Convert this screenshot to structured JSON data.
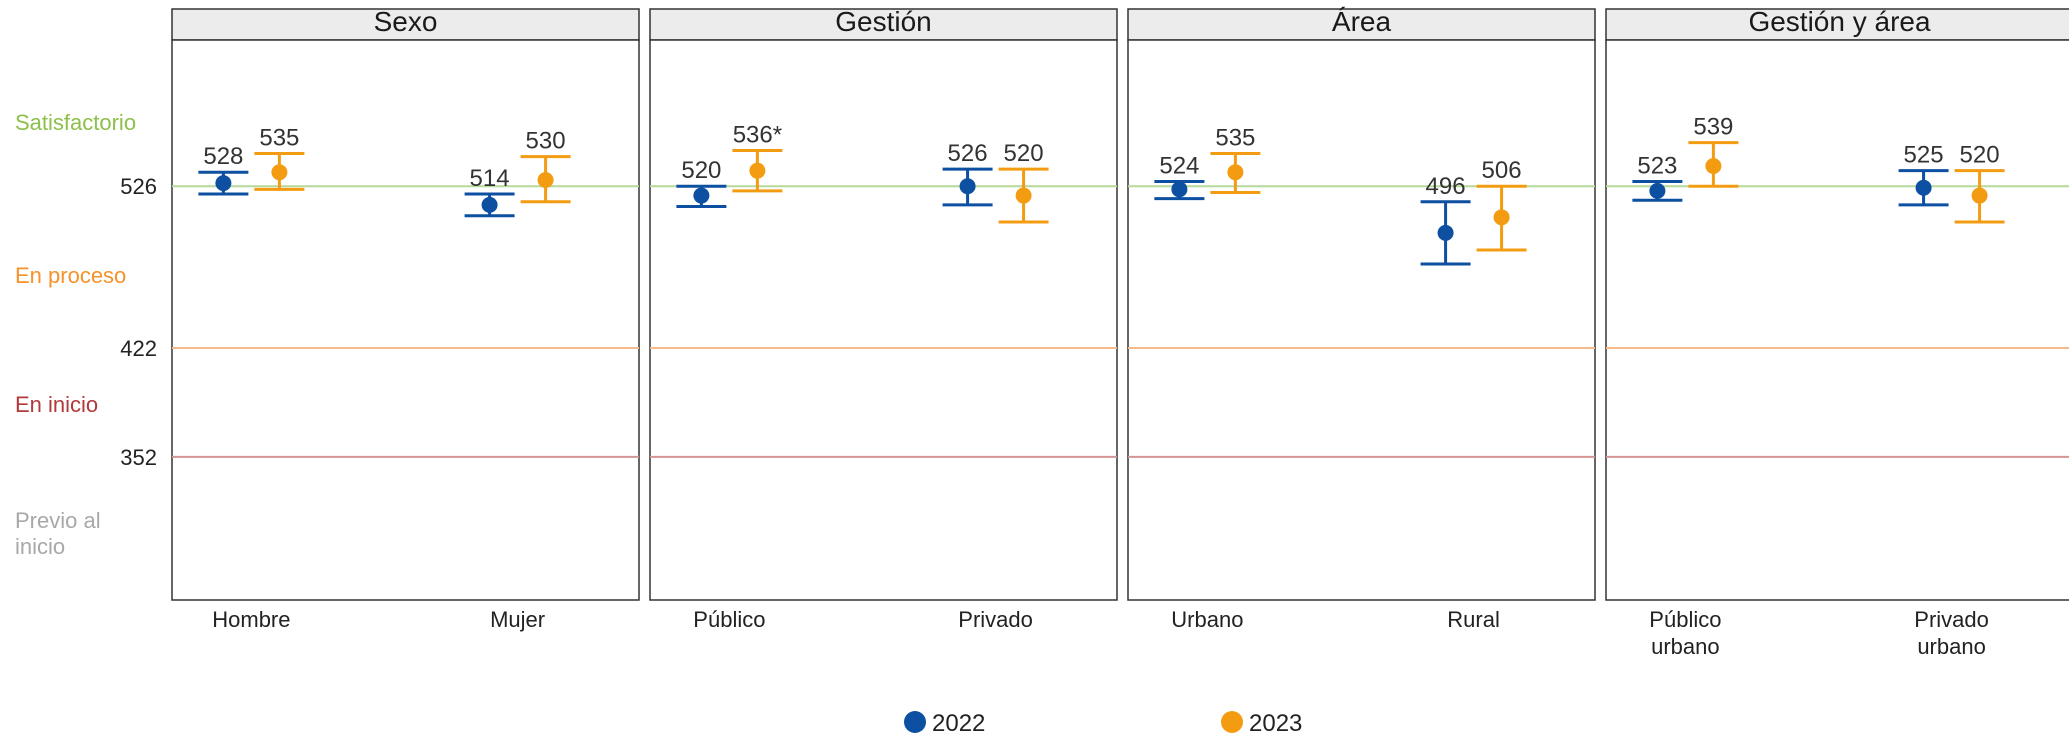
{
  "chart_data": {
    "type": "scatter",
    "subtype": "dot-with-error-bars, faceted",
    "legend": {
      "placement": "bottom",
      "entries": [
        {
          "label": "2022",
          "color": "#0d4fa0"
        },
        {
          "label": "2023",
          "color": "#f39c12"
        }
      ]
    },
    "y_scale": {
      "min": 260,
      "max": 620
    },
    "bands": [
      {
        "label": "Satisfactorio",
        "color": "#8dc04a"
      },
      {
        "label": "En proceso",
        "color": "#f5922c"
      },
      {
        "label": "En inicio",
        "color": "#b13b3b"
      },
      {
        "label": "Previo al inicio",
        "color": "#a8a8a8"
      }
    ],
    "thresholds": [
      {
        "value": 526,
        "label": "526",
        "color": "#b6d99a"
      },
      {
        "value": 422,
        "label": "422",
        "color": "#f6b98a"
      },
      {
        "value": 352,
        "label": "352",
        "color": "#d59494"
      }
    ],
    "panels": [
      {
        "title": "Sexo",
        "categories": [
          {
            "label": "Hombre",
            "points": [
              {
                "year": "2022",
                "value": 528,
                "low": 521,
                "high": 535,
                "label": "528"
              },
              {
                "year": "2023",
                "value": 535,
                "low": 524,
                "high": 547,
                "label": "535"
              }
            ]
          },
          {
            "label": "Mujer",
            "points": [
              {
                "year": "2022",
                "value": 514,
                "low": 507,
                "high": 521,
                "label": "514"
              },
              {
                "year": "2023",
                "value": 530,
                "low": 516,
                "high": 545,
                "label": "530"
              }
            ]
          }
        ]
      },
      {
        "title": "Gestión",
        "categories": [
          {
            "label": "Público",
            "points": [
              {
                "year": "2022",
                "value": 520,
                "low": 513,
                "high": 526,
                "label": "520"
              },
              {
                "year": "2023",
                "value": 536,
                "low": 523,
                "high": 549,
                "label": "536*"
              }
            ]
          },
          {
            "label": "Privado",
            "points": [
              {
                "year": "2022",
                "value": 526,
                "low": 514,
                "high": 537,
                "label": "526"
              },
              {
                "year": "2023",
                "value": 520,
                "low": 503,
                "high": 537,
                "label": "520"
              }
            ]
          }
        ]
      },
      {
        "title": "Área",
        "categories": [
          {
            "label": "Urbano",
            "points": [
              {
                "year": "2022",
                "value": 524,
                "low": 518,
                "high": 529,
                "label": "524"
              },
              {
                "year": "2023",
                "value": 535,
                "low": 522,
                "high": 547,
                "label": "535"
              }
            ]
          },
          {
            "label": "Rural",
            "points": [
              {
                "year": "2022",
                "value": 496,
                "low": 476,
                "high": 516,
                "label": "496"
              },
              {
                "year": "2023",
                "value": 506,
                "low": 485,
                "high": 526,
                "label": "506"
              }
            ]
          }
        ]
      },
      {
        "title": "Gestión y área",
        "categories": [
          {
            "label": "Público urbano",
            "points": [
              {
                "year": "2022",
                "value": 523,
                "low": 517,
                "high": 529,
                "label": "523"
              },
              {
                "year": "2023",
                "value": 539,
                "low": 526,
                "high": 554,
                "label": "539"
              }
            ]
          },
          {
            "label": "Privado urbano",
            "points": [
              {
                "year": "2022",
                "value": 525,
                "low": 514,
                "high": 536,
                "label": "525"
              },
              {
                "year": "2023",
                "value": 520,
                "low": 503,
                "high": 536,
                "label": "520"
              }
            ]
          }
        ]
      }
    ]
  }
}
